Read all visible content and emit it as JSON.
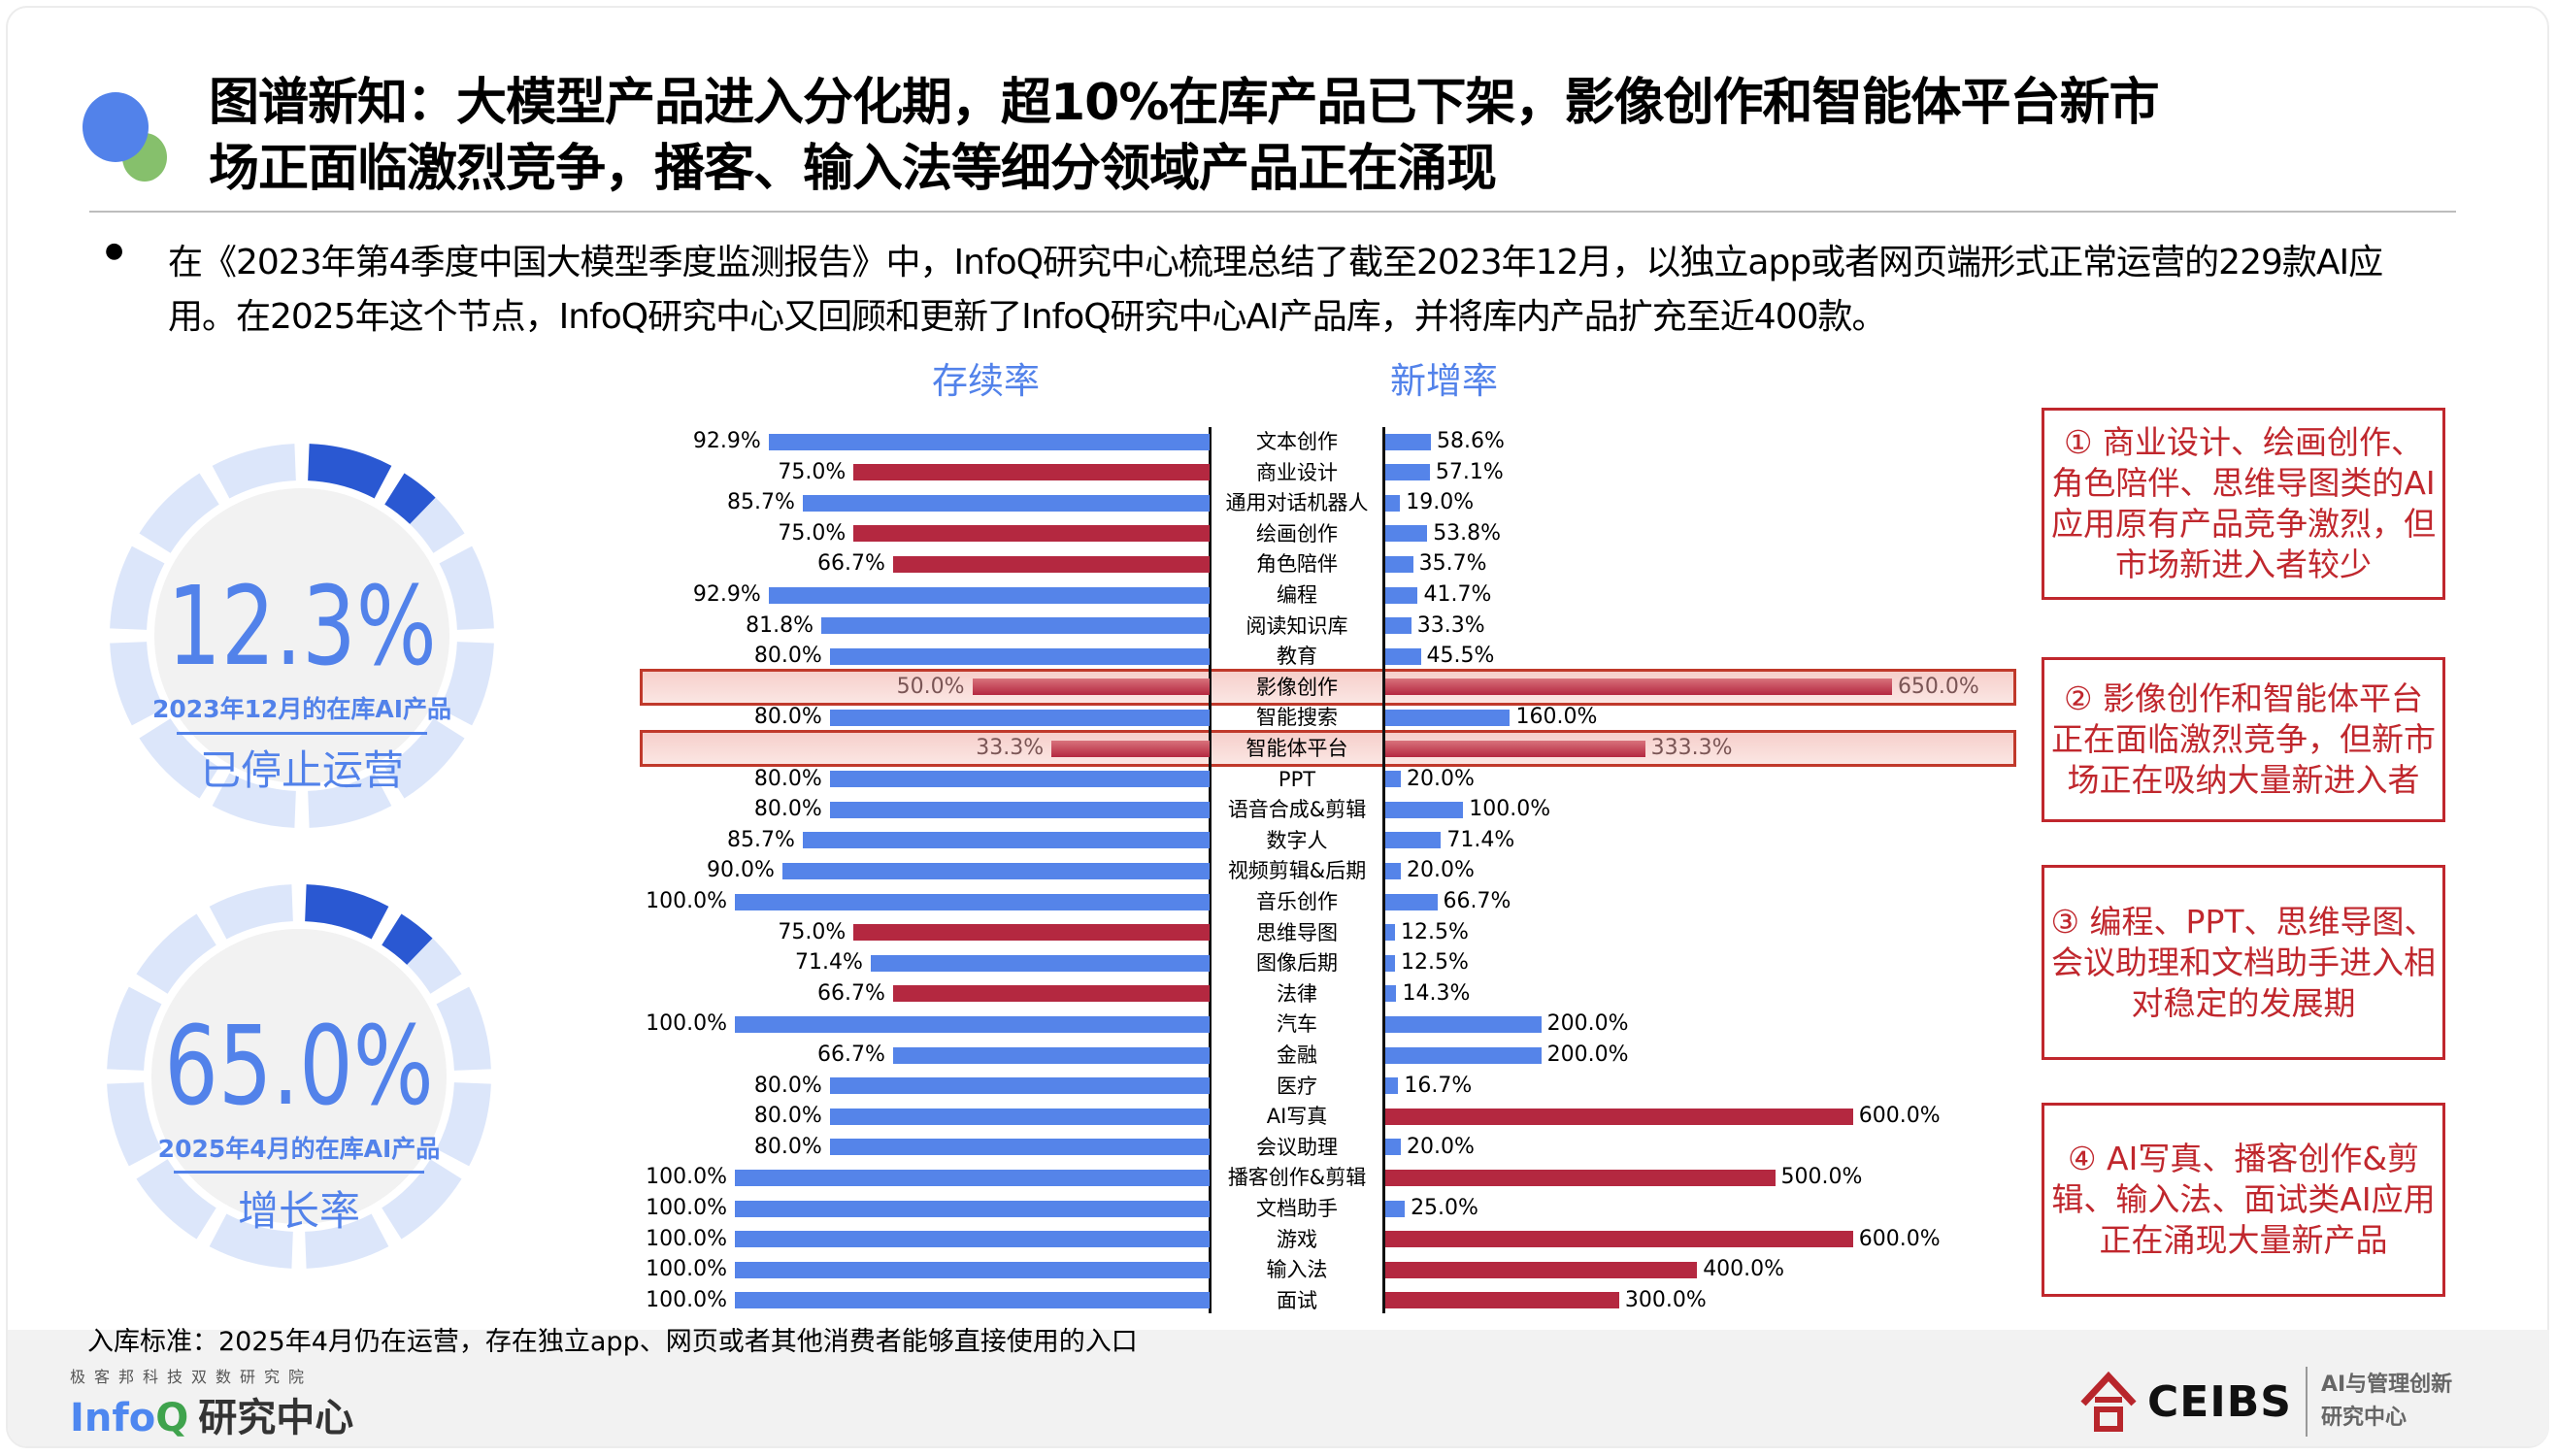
{
  "title": {
    "line1": "图谱新知：大模型产品进入分化期，超10%在库产品已下架，影像创作和智能体平台新市",
    "line2": "场正面临激烈竞争，播客、输入法等细分领域产品正在涌现"
  },
  "intro": "在《2023年第4季度中国大模型季度监测报告》中，InfoQ研究中心梳理总结了截至2023年12月，以独立app或者网页端形式正常运营的229款AI应用。在2025年这个节点，InfoQ研究中心又回顾和更新了InfoQ研究中心AI产品库，并将库内产品扩充至近400款。",
  "donuts": [
    {
      "value": "12.3%",
      "subtitle": "2023年12月的在库AI产品",
      "label": "已停止运营"
    },
    {
      "value": "65.0%",
      "subtitle": "2025年4月的在库AI产品",
      "label": "增长率"
    }
  ],
  "colors": {
    "blue": "#5584e9",
    "red": "#b42840",
    "accent": "#5282ea",
    "note": "#c0272d"
  },
  "chart_data": {
    "type": "bar",
    "title": "",
    "series_labels": {
      "left": "存续率",
      "right": "新增率"
    },
    "categories": [
      "文本创作",
      "商业设计",
      "通用对话机器人",
      "绘画创作",
      "角色陪伴",
      "编程",
      "阅读知识库",
      "教育",
      "影像创作",
      "智能搜索",
      "智能体平台",
      "PPT",
      "语音合成&剪辑",
      "数字人",
      "视频剪辑&后期",
      "音乐创作",
      "思维导图",
      "图像后期",
      "法律",
      "汽车",
      "金融",
      "医疗",
      "AI写真",
      "会议助理",
      "播客创作&剪辑",
      "文档助手",
      "游戏",
      "输入法",
      "面试"
    ],
    "series": [
      {
        "name": "存续率",
        "unit": "%",
        "values": [
          92.9,
          75.0,
          85.7,
          75.0,
          66.7,
          92.9,
          81.8,
          80.0,
          50.0,
          80.0,
          33.3,
          80.0,
          80.0,
          85.7,
          90.0,
          100.0,
          75.0,
          71.4,
          66.7,
          100.0,
          66.7,
          80.0,
          80.0,
          80.0,
          100.0,
          100.0,
          100.0,
          100.0,
          100.0
        ],
        "labels": [
          "92.9%",
          "75.0%",
          "85.7%",
          "75.0%",
          "66.7%",
          "92.9%",
          "81.8%",
          "80.0%",
          "50.0%",
          "80.0%",
          "33.3%",
          "80.0%",
          "80.0%",
          "85.7%",
          "90.0%",
          "100.0%",
          "75.0%",
          "71.4%",
          "66.7%",
          "100.0%",
          "66.7%",
          "80.0%",
          "80.0%",
          "80.0%",
          "100.0%",
          "100.0%",
          "100.0%",
          "100.0%",
          "100.0%"
        ],
        "highlight": [
          0,
          1,
          0,
          1,
          1,
          0,
          0,
          0,
          1,
          0,
          1,
          0,
          0,
          0,
          0,
          0,
          1,
          0,
          1,
          0,
          0,
          0,
          0,
          0,
          0,
          0,
          0,
          0,
          0
        ]
      },
      {
        "name": "新增率",
        "unit": "%",
        "values": [
          58.6,
          57.1,
          19.0,
          53.8,
          35.7,
          41.7,
          33.3,
          45.5,
          650.0,
          160.0,
          333.3,
          20.0,
          100.0,
          71.4,
          20.0,
          66.7,
          12.5,
          12.5,
          14.3,
          200.0,
          200.0,
          16.7,
          600.0,
          20.0,
          500.0,
          25.0,
          600.0,
          400.0,
          300.0
        ],
        "labels": [
          "58.6%",
          "57.1%",
          "19.0%",
          "53.8%",
          "35.7%",
          "41.7%",
          "33.3%",
          "45.5%",
          "650.0%",
          "160.0%",
          "333.3%",
          "20.0%",
          "100.0%",
          "71.4%",
          "20.0%",
          "66.7%",
          "12.5%",
          "12.5%",
          "14.3%",
          "200.0%",
          "200.0%",
          "16.7%",
          "600.0%",
          "20.0%",
          "500.0%",
          "25.0%",
          "600.0%",
          "400.0%",
          "300.0%"
        ],
        "highlight": [
          0,
          0,
          0,
          0,
          0,
          0,
          0,
          0,
          1,
          0,
          1,
          0,
          0,
          0,
          0,
          0,
          0,
          0,
          0,
          0,
          0,
          0,
          1,
          0,
          1,
          0,
          1,
          1,
          1
        ]
      }
    ],
    "highlighted_rows": [
      "影像创作",
      "智能体平台"
    ],
    "left_range": [
      0,
      100
    ],
    "right_range": [
      0,
      650
    ],
    "grid": false
  },
  "notes": [
    "① 商业设计、绘画创作、角色陪伴、思维导图类的AI应用原有产品竞争激烈，但市场新进入者较少",
    "② 影像创作和智能体平台正在面临激烈竞争，但新市场正在吸纳大量新进入者",
    "③ 编程、PPT、思维导图、会议助理和文档助手进入相对稳定的发展期",
    "④ AI写真、播客创作&剪辑、输入法、面试类AI应用正在涌现大量新产品"
  ],
  "footnote": "入库标准：2025年4月仍在运营，存在独立app、网页或者其他消费者能够直接使用的入口",
  "footer": {
    "org_small": "极客邦科技双数研究院",
    "infoq_a": "Info",
    "infoq_b": "Q",
    "infoq_cn": "研究中心",
    "ceibs": "CEIBS",
    "ceibs_sub1": "AI与管理创新",
    "ceibs_sub2": "研究中心"
  }
}
